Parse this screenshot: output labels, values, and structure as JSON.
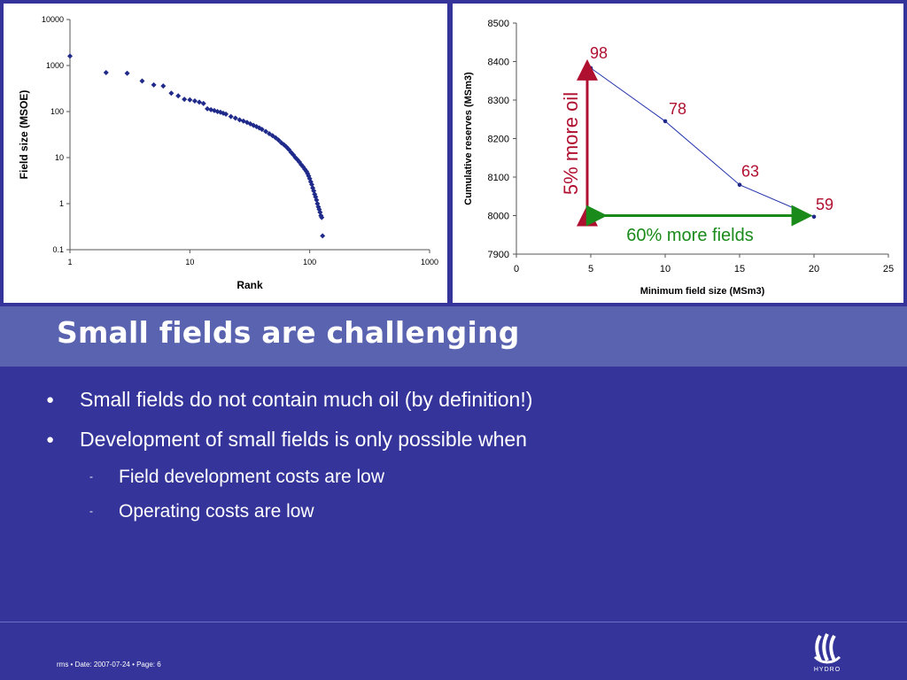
{
  "slide": {
    "title": "Small fields are challenging",
    "bullets": [
      "Small fields do not contain much oil (by definition!)",
      "Development of small fields is only possible when"
    ],
    "bullet_marker": "●",
    "sub_bullets": [
      "Field development costs are low",
      "Operating costs are low"
    ],
    "sub_marker": "-",
    "footer": "rms • Date: 2007-07-24 • Page: 6",
    "logo_text": "HYDRO",
    "colors": {
      "background": "#34349a",
      "title_band": "#5a63b0",
      "marker": "#1f2a8a",
      "annotation_red": "#b01030",
      "annotation_green": "#1a8a1a"
    }
  },
  "chart_data": [
    {
      "type": "scatter",
      "xlabel": "Rank",
      "ylabel": "Field size (MSOE)",
      "xscale": "log",
      "yscale": "log",
      "xlim": [
        1,
        1000
      ],
      "ylim": [
        0.1,
        10000
      ],
      "xticks": [
        "1",
        "10",
        "100",
        "1000"
      ],
      "yticks": [
        "0.1",
        "1",
        "10",
        "100",
        "1000",
        "10000"
      ],
      "grid": false,
      "points": [
        [
          1,
          1600
        ],
        [
          2,
          700
        ],
        [
          3,
          680
        ],
        [
          4,
          460
        ],
        [
          5,
          380
        ],
        [
          6,
          360
        ],
        [
          7,
          250
        ],
        [
          8,
          220
        ],
        [
          9,
          185
        ],
        [
          10,
          180
        ],
        [
          11,
          170
        ],
        [
          12,
          160
        ],
        [
          13,
          150
        ],
        [
          14,
          115
        ],
        [
          15,
          110
        ],
        [
          16,
          105
        ],
        [
          17,
          100
        ],
        [
          18,
          97
        ],
        [
          19,
          92
        ],
        [
          20,
          88
        ],
        [
          22,
          78
        ],
        [
          24,
          72
        ],
        [
          26,
          66
        ],
        [
          28,
          62
        ],
        [
          30,
          58
        ],
        [
          32,
          54
        ],
        [
          34,
          50
        ],
        [
          36,
          47
        ],
        [
          38,
          44
        ],
        [
          40,
          41
        ],
        [
          43,
          37
        ],
        [
          46,
          33
        ],
        [
          49,
          30
        ],
        [
          52,
          27
        ],
        [
          55,
          24
        ],
        [
          58,
          21
        ],
        [
          61,
          19
        ],
        [
          64,
          17
        ],
        [
          67,
          15
        ],
        [
          70,
          13
        ],
        [
          73,
          11.5
        ],
        [
          76,
          10
        ],
        [
          79,
          9
        ],
        [
          82,
          8
        ],
        [
          85,
          7
        ],
        [
          88,
          6.3
        ],
        [
          91,
          5.6
        ],
        [
          94,
          5
        ],
        [
          96,
          4.5
        ],
        [
          98,
          4
        ],
        [
          100,
          3.5
        ],
        [
          102,
          3
        ],
        [
          104,
          2.6
        ],
        [
          106,
          2.2
        ],
        [
          108,
          1.9
        ],
        [
          110,
          1.6
        ],
        [
          112,
          1.4
        ],
        [
          114,
          1.2
        ],
        [
          116,
          1.0
        ],
        [
          118,
          0.85
        ],
        [
          120,
          0.75
        ],
        [
          122,
          0.65
        ],
        [
          124,
          0.55
        ],
        [
          126,
          0.5
        ],
        [
          128,
          0.2
        ]
      ]
    },
    {
      "type": "line",
      "xlabel": "Minimum field size (MSm3)",
      "ylabel": "Cumulative reserves (MSm3)",
      "xlim": [
        0,
        25
      ],
      "ylim": [
        7900,
        8500
      ],
      "xticks": [
        "0",
        "5",
        "10",
        "15",
        "20",
        "25"
      ],
      "yticks": [
        "7900",
        "8000",
        "8100",
        "8200",
        "8300",
        "8400",
        "8500"
      ],
      "grid": false,
      "x": [
        5,
        10,
        15,
        20
      ],
      "y": [
        8383,
        8245,
        8080,
        7997
      ],
      "data_labels": [
        "98",
        "78",
        "63",
        "59"
      ],
      "annotations": [
        "5% more oil",
        "60% more fields"
      ]
    }
  ]
}
